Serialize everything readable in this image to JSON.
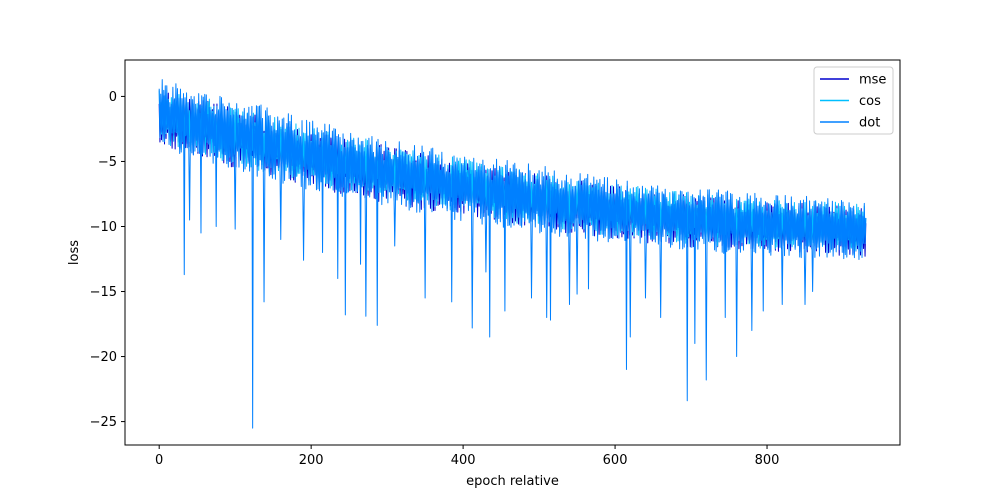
{
  "chart_data": {
    "type": "line",
    "title": "",
    "xlabel": "epoch relative",
    "ylabel": "loss",
    "xlim": [
      -45,
      975
    ],
    "ylim": [
      -26.8,
      2.8
    ],
    "xticks": [
      0,
      200,
      400,
      600,
      800
    ],
    "yticks": [
      0,
      -5,
      -10,
      -15,
      -20,
      -25
    ],
    "xtick_labels": [
      "0",
      "200",
      "400",
      "600",
      "800"
    ],
    "ytick_labels": [
      "0",
      "−5",
      "−10",
      "−15",
      "−20",
      "−25"
    ],
    "grid": false,
    "legend": {
      "position": "top-right"
    },
    "x_range": [
      0,
      930
    ],
    "series": [
      {
        "name": "mse",
        "color": "#0000cd",
        "upper_envelope": [
          [
            0,
            0.5
          ],
          [
            100,
            -0.8
          ],
          [
            200,
            -2.6
          ],
          [
            300,
            -3.8
          ],
          [
            400,
            -5.0
          ],
          [
            500,
            -6.0
          ],
          [
            600,
            -6.9
          ],
          [
            700,
            -7.6
          ],
          [
            800,
            -8.1
          ],
          [
            930,
            -8.4
          ]
        ],
        "lower_envelope": [
          [
            0,
            -3.8
          ],
          [
            100,
            -5.5
          ],
          [
            200,
            -7.0
          ],
          [
            300,
            -8.2
          ],
          [
            400,
            -9.3
          ],
          [
            500,
            -10.3
          ],
          [
            600,
            -11.0
          ],
          [
            700,
            -11.6
          ],
          [
            800,
            -12.0
          ],
          [
            930,
            -12.3
          ]
        ]
      },
      {
        "name": "cos",
        "color": "#00bfff",
        "upper_envelope": [
          [
            0,
            0.6
          ],
          [
            100,
            -0.6
          ],
          [
            200,
            -2.4
          ],
          [
            300,
            -3.6
          ],
          [
            400,
            -4.8
          ],
          [
            500,
            -5.8
          ],
          [
            600,
            -6.7
          ],
          [
            700,
            -7.4
          ],
          [
            800,
            -7.9
          ],
          [
            930,
            -8.2
          ]
        ],
        "lower_envelope": [
          [
            0,
            -3.6
          ],
          [
            100,
            -5.3
          ],
          [
            200,
            -6.8
          ],
          [
            300,
            -8.0
          ],
          [
            400,
            -9.1
          ],
          [
            500,
            -10.1
          ],
          [
            600,
            -10.8
          ],
          [
            700,
            -11.4
          ],
          [
            800,
            -11.8
          ],
          [
            930,
            -12.1
          ]
        ]
      },
      {
        "name": "dot",
        "color": "#0080ff",
        "upper_envelope": [
          [
            0,
            1.5
          ],
          [
            100,
            0.0
          ],
          [
            200,
            -1.8
          ],
          [
            300,
            -3.2
          ],
          [
            400,
            -4.3
          ],
          [
            500,
            -5.3
          ],
          [
            600,
            -6.3
          ],
          [
            700,
            -7.0
          ],
          [
            800,
            -7.5
          ],
          [
            930,
            -7.9
          ]
        ],
        "lower_envelope": [
          [
            0,
            -4.0
          ],
          [
            100,
            -5.8
          ],
          [
            200,
            -7.3
          ],
          [
            300,
            -8.5
          ],
          [
            400,
            -9.6
          ],
          [
            500,
            -10.6
          ],
          [
            600,
            -11.3
          ],
          [
            700,
            -11.9
          ],
          [
            800,
            -12.3
          ],
          [
            930,
            -12.6
          ]
        ],
        "spikes": [
          [
            33,
            -13.7
          ],
          [
            40,
            -9.5
          ],
          [
            55,
            -10.5
          ],
          [
            75,
            -10.0
          ],
          [
            100,
            -10.2
          ],
          [
            123,
            -25.5
          ],
          [
            138,
            -15.8
          ],
          [
            160,
            -11.0
          ],
          [
            190,
            -12.6
          ],
          [
            215,
            -12.0
          ],
          [
            235,
            -14.0
          ],
          [
            245,
            -16.8
          ],
          [
            265,
            -12.9
          ],
          [
            272,
            -16.9
          ],
          [
            287,
            -17.6
          ],
          [
            310,
            -11.5
          ],
          [
            350,
            -15.5
          ],
          [
            385,
            -15.8
          ],
          [
            412,
            -17.8
          ],
          [
            430,
            -13.5
          ],
          [
            435,
            -18.5
          ],
          [
            455,
            -16.5
          ],
          [
            490,
            -15.5
          ],
          [
            510,
            -17.0
          ],
          [
            515,
            -17.2
          ],
          [
            540,
            -16.0
          ],
          [
            550,
            -15.2
          ],
          [
            565,
            -14.8
          ],
          [
            615,
            -21.0
          ],
          [
            620,
            -18.5
          ],
          [
            640,
            -15.5
          ],
          [
            660,
            -17.0
          ],
          [
            695,
            -23.4
          ],
          [
            705,
            -19.0
          ],
          [
            720,
            -21.8
          ],
          [
            745,
            -17.0
          ],
          [
            760,
            -20.0
          ],
          [
            780,
            -18.0
          ],
          [
            795,
            -16.5
          ],
          [
            820,
            -16.0
          ],
          [
            850,
            -16.0
          ],
          [
            860,
            -15.0
          ]
        ]
      }
    ]
  }
}
